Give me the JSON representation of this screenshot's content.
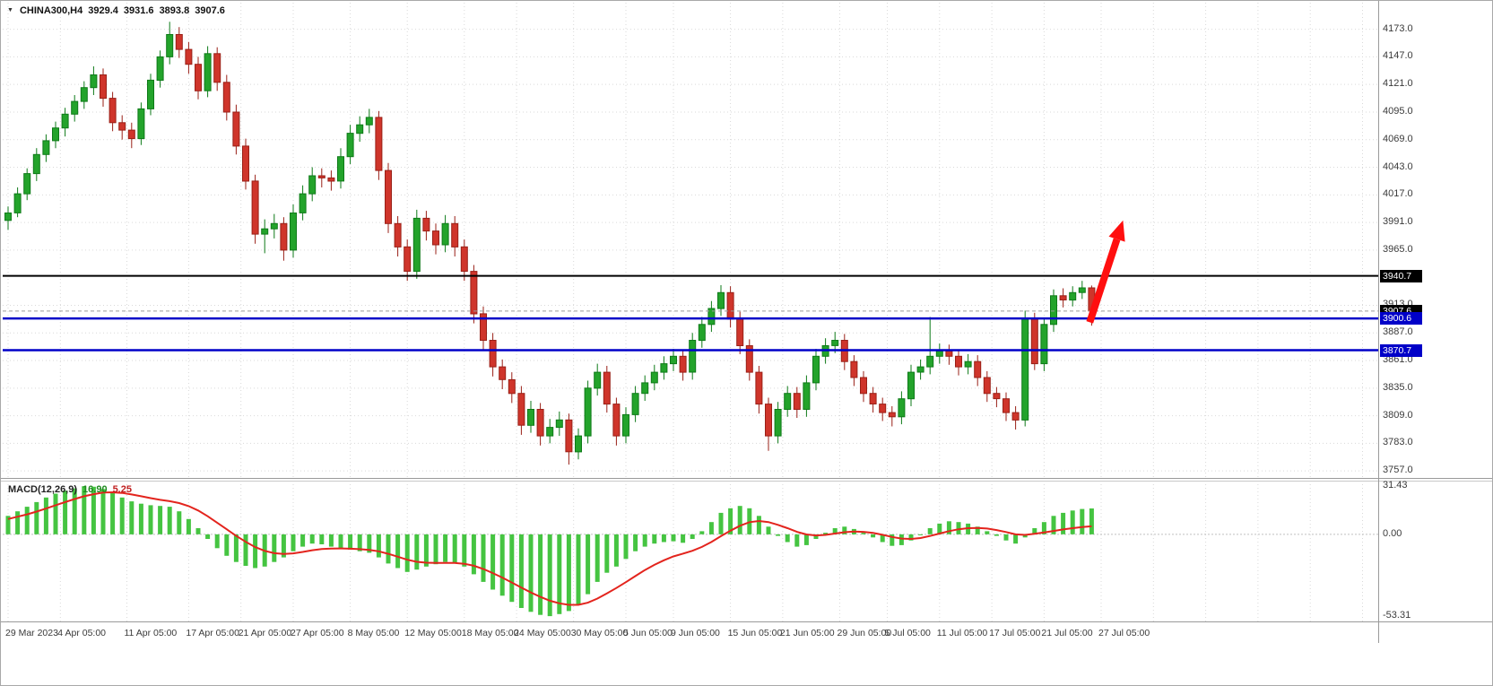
{
  "header": {
    "symbol": "CHINA300,H4",
    "open": "3929.4",
    "high": "3931.6",
    "low": "3893.8",
    "close": "3907.6"
  },
  "macd_panel": {
    "name": "MACD(12,26,9)",
    "main_value": "16.90",
    "signal_value": "5.25",
    "axis_labels": [
      "31.43",
      "0.00",
      "-53.31"
    ]
  },
  "price_axis": {
    "tick_values": [
      4173,
      4147,
      4121,
      4095,
      4069,
      4043,
      4017,
      3991,
      3965,
      3913,
      3887,
      3861,
      3835,
      3809,
      3783,
      3757
    ],
    "badges": [
      {
        "value": 3940.7,
        "label": "3940.7",
        "bg": "#000000"
      },
      {
        "value": 3907.6,
        "label": "3907.6",
        "bg": "#000000"
      },
      {
        "value": 3900.6,
        "label": "3900.6",
        "bg": "#0000c8"
      },
      {
        "value": 3870.7,
        "label": "3870.7",
        "bg": "#0000c8"
      }
    ]
  },
  "time_axis": {
    "labels": [
      {
        "text": "29 Mar 2023",
        "i": 0
      },
      {
        "text": "4 Apr 05:00",
        "i": 5.5
      },
      {
        "text": "11 Apr 05:00",
        "i": 12.5
      },
      {
        "text": "17 Apr 05:00",
        "i": 19
      },
      {
        "text": "21 Apr 05:00",
        "i": 24.5
      },
      {
        "text": "27 Apr 05:00",
        "i": 30
      },
      {
        "text": "8 May 05:00",
        "i": 36
      },
      {
        "text": "12 May 05:00",
        "i": 42
      },
      {
        "text": "18 May 05:00",
        "i": 48
      },
      {
        "text": "24 May 05:00",
        "i": 53.5
      },
      {
        "text": "30 May 05:00",
        "i": 59.5
      },
      {
        "text": "5 Jun 05:00",
        "i": 65
      },
      {
        "text": "9 Jun 05:00",
        "i": 70
      },
      {
        "text": "15 Jun 05:00",
        "i": 76
      },
      {
        "text": "21 Jun 05:00",
        "i": 81.5
      },
      {
        "text": "29 Jun 05:00",
        "i": 87.5
      },
      {
        "text": "5 Jul 05:00",
        "i": 92.5
      },
      {
        "text": "11 Jul 05:00",
        "i": 98
      },
      {
        "text": "17 Jul 05:00",
        "i": 103.5
      },
      {
        "text": "21 Jul 05:00",
        "i": 109
      },
      {
        "text": "27 Jul 05:00",
        "i": 115
      }
    ],
    "extra_grid_i": [
      120.5,
      126,
      131.5,
      137,
      142.5
    ]
  },
  "chart_data": [
    {
      "type": "candlestick",
      "title": "CHINA300,H4",
      "timeframe": "H4",
      "ylim": [
        3750.4,
        4198
      ],
      "current_bar": {
        "open": 3929.4,
        "high": 3931.6,
        "low": 3893.8,
        "close": 3907.6
      },
      "hlines": [
        {
          "y": 3940.7,
          "color": "#000000",
          "style": "solid",
          "width": 2,
          "name": "resistance-line-3940"
        },
        {
          "y": 3907.6,
          "color": "#9b9b9b",
          "style": "dashed",
          "width": 1,
          "name": "current-price-line"
        },
        {
          "y": 3900.6,
          "color": "#0000c8",
          "style": "solid",
          "width": 2.5,
          "name": "support-line-3900"
        },
        {
          "y": 3870.7,
          "color": "#0000c8",
          "style": "solid",
          "width": 2.5,
          "name": "support-line-3870"
        }
      ],
      "colors": {
        "up": "#23a32b",
        "up_stroke": "#0e7a18",
        "down": "#cf352b",
        "down_stroke": "#992017",
        "grid": "#d9d9d9"
      },
      "candles": [
        [
          3993,
          4006,
          3984,
          4000
        ],
        [
          4000,
          4024,
          3996,
          4018
        ],
        [
          4018,
          4042,
          4012,
          4037
        ],
        [
          4037,
          4061,
          4030,
          4055
        ],
        [
          4055,
          4074,
          4048,
          4068
        ],
        [
          4068,
          4086,
          4061,
          4080
        ],
        [
          4080,
          4099,
          4072,
          4093
        ],
        [
          4093,
          4111,
          4086,
          4105
        ],
        [
          4105,
          4124,
          4098,
          4118
        ],
        [
          4118,
          4138,
          4111,
          4130
        ],
        [
          4130,
          4136,
          4100,
          4108
        ],
        [
          4108,
          4114,
          4077,
          4085
        ],
        [
          4085,
          4092,
          4069,
          4078
        ],
        [
          4078,
          4085,
          4061,
          4070
        ],
        [
          4070,
          4104,
          4064,
          4098
        ],
        [
          4098,
          4131,
          4092,
          4125
        ],
        [
          4125,
          4153,
          4118,
          4147
        ],
        [
          4147,
          4180,
          4140,
          4168
        ],
        [
          4168,
          4175,
          4146,
          4154
        ],
        [
          4154,
          4161,
          4131,
          4140
        ],
        [
          4140,
          4147,
          4107,
          4115
        ],
        [
          4115,
          4157,
          4109,
          4150
        ],
        [
          4150,
          4156,
          4115,
          4123
        ],
        [
          4123,
          4130,
          4087,
          4095
        ],
        [
          4095,
          4102,
          4055,
          4063
        ],
        [
          4063,
          4070,
          4022,
          4030
        ],
        [
          4030,
          4036,
          3971,
          3980
        ],
        [
          3980,
          3994,
          3962,
          3985
        ],
        [
          3985,
          3999,
          3976,
          3990
        ],
        [
          3990,
          3996,
          3955,
          3965
        ],
        [
          3965,
          4008,
          3958,
          4000
        ],
        [
          4000,
          4026,
          3993,
          4018
        ],
        [
          4018,
          4043,
          4011,
          4035
        ],
        [
          4035,
          4042,
          4024,
          4033
        ],
        [
          4033,
          4040,
          4021,
          4030
        ],
        [
          4030,
          4061,
          4023,
          4053
        ],
        [
          4053,
          4083,
          4046,
          4075
        ],
        [
          4075,
          4091,
          4067,
          4083
        ],
        [
          4083,
          4098,
          4075,
          4090
        ],
        [
          4090,
          4096,
          4031,
          4040
        ],
        [
          4040,
          4047,
          3981,
          3990
        ],
        [
          3990,
          3997,
          3959,
          3968
        ],
        [
          3968,
          3975,
          3936,
          3945
        ],
        [
          3945,
          4003,
          3938,
          3995
        ],
        [
          3995,
          4002,
          3974,
          3983
        ],
        [
          3983,
          3990,
          3961,
          3970
        ],
        [
          3970,
          3998,
          3963,
          3990
        ],
        [
          3990,
          3997,
          3959,
          3968
        ],
        [
          3968,
          3975,
          3936,
          3945
        ],
        [
          3945,
          3951,
          3896,
          3905
        ],
        [
          3905,
          3912,
          3871,
          3880
        ],
        [
          3880,
          3887,
          3846,
          3855
        ],
        [
          3855,
          3862,
          3834,
          3843
        ],
        [
          3843,
          3850,
          3821,
          3830
        ],
        [
          3830,
          3837,
          3791,
          3800
        ],
        [
          3800,
          3823,
          3793,
          3815
        ],
        [
          3815,
          3821,
          3781,
          3790
        ],
        [
          3790,
          3806,
          3783,
          3798
        ],
        [
          3798,
          3813,
          3790,
          3805
        ],
        [
          3805,
          3811,
          3763,
          3775
        ],
        [
          3775,
          3797,
          3768,
          3790
        ],
        [
          3790,
          3842,
          3783,
          3835
        ],
        [
          3835,
          3858,
          3828,
          3850
        ],
        [
          3850,
          3856,
          3812,
          3820
        ],
        [
          3820,
          3826,
          3781,
          3790
        ],
        [
          3790,
          3817,
          3783,
          3810
        ],
        [
          3810,
          3837,
          3803,
          3830
        ],
        [
          3830,
          3847,
          3823,
          3840
        ],
        [
          3840,
          3857,
          3833,
          3850
        ],
        [
          3850,
          3865,
          3843,
          3858
        ],
        [
          3858,
          3872,
          3851,
          3865
        ],
        [
          3865,
          3871,
          3842,
          3850
        ],
        [
          3850,
          3887,
          3843,
          3880
        ],
        [
          3880,
          3902,
          3873,
          3895
        ],
        [
          3895,
          3917,
          3888,
          3910
        ],
        [
          3910,
          3932,
          3903,
          3925
        ],
        [
          3925,
          3931,
          3892,
          3900
        ],
        [
          3900,
          3907,
          3867,
          3875
        ],
        [
          3875,
          3881,
          3842,
          3850
        ],
        [
          3850,
          3856,
          3811,
          3820
        ],
        [
          3820,
          3826,
          3776,
          3790
        ],
        [
          3790,
          3822,
          3783,
          3815
        ],
        [
          3815,
          3837,
          3808,
          3830
        ],
        [
          3830,
          3836,
          3807,
          3815
        ],
        [
          3815,
          3847,
          3808,
          3840
        ],
        [
          3840,
          3872,
          3833,
          3865
        ],
        [
          3865,
          3882,
          3858,
          3875
        ],
        [
          3875,
          3888,
          3868,
          3880
        ],
        [
          3880,
          3886,
          3852,
          3860
        ],
        [
          3860,
          3866,
          3837,
          3845
        ],
        [
          3845,
          3851,
          3822,
          3830
        ],
        [
          3830,
          3836,
          3812,
          3820
        ],
        [
          3820,
          3826,
          3804,
          3812
        ],
        [
          3812,
          3818,
          3799,
          3808
        ],
        [
          3808,
          3832,
          3801,
          3825
        ],
        [
          3825,
          3857,
          3818,
          3850
        ],
        [
          3850,
          3862,
          3843,
          3855
        ],
        [
          3855,
          3902,
          3848,
          3865
        ],
        [
          3865,
          3877,
          3858,
          3870
        ],
        [
          3870,
          3876,
          3857,
          3865
        ],
        [
          3865,
          3871,
          3847,
          3855
        ],
        [
          3855,
          3867,
          3848,
          3860
        ],
        [
          3860,
          3866,
          3837,
          3845
        ],
        [
          3845,
          3851,
          3822,
          3830
        ],
        [
          3830,
          3836,
          3817,
          3825
        ],
        [
          3825,
          3831,
          3804,
          3812
        ],
        [
          3812,
          3818,
          3796,
          3805
        ],
        [
          3805,
          3908,
          3799,
          3900
        ],
        [
          3900,
          3906,
          3852,
          3858
        ],
        [
          3858,
          3901,
          3851,
          3895
        ],
        [
          3895,
          3928,
          3888,
          3922
        ],
        [
          3922,
          3929,
          3911,
          3918
        ],
        [
          3918,
          3931,
          3912,
          3925
        ],
        [
          3925,
          3936,
          3919,
          3929.4
        ],
        [
          3929.4,
          3931.6,
          3893.8,
          3907.6
        ]
      ]
    },
    {
      "type": "macd",
      "params": "12,26,9",
      "ylim": [
        -56.8,
        35.0
      ],
      "axis_ticks": [
        31.43,
        0,
        -53.31
      ],
      "colors": {
        "histogram": "#45c441",
        "signal": "#e3241d",
        "zero_line": "#c0c0c0"
      },
      "histogram": [
        12,
        15,
        18,
        21,
        24,
        26.5,
        28.5,
        30,
        31.4,
        31,
        29.5,
        27,
        24,
        21.5,
        20,
        19,
        18.5,
        18,
        15,
        10,
        4,
        -3,
        -9,
        -14,
        -18,
        -20.5,
        -22,
        -21,
        -18,
        -15,
        -11,
        -8,
        -6,
        -6.5,
        -8,
        -9,
        -10,
        -11,
        -12,
        -15,
        -19,
        -22,
        -24.5,
        -23,
        -21,
        -19.5,
        -18,
        -19,
        -21,
        -26,
        -31,
        -36,
        -40,
        -44,
        -48,
        -50.5,
        -52.5,
        -53.3,
        -52,
        -50,
        -46,
        -39,
        -31,
        -25,
        -21,
        -16,
        -11,
        -8,
        -6,
        -5,
        -4.5,
        -5.5,
        -3,
        2,
        8,
        14,
        17,
        18.5,
        17,
        12,
        5,
        -1,
        -5,
        -8,
        -7,
        -3,
        1,
        4,
        5,
        3.5,
        1,
        -2,
        -5,
        -7.5,
        -7,
        -4,
        0,
        4,
        7,
        8.5,
        8,
        7,
        5,
        2,
        -1,
        -4,
        -6,
        -2,
        4,
        8,
        12,
        14,
        15.5,
        16.5,
        16.9
      ],
      "signal": [
        10,
        11.5,
        13,
        14.8,
        16.8,
        19,
        21,
        23,
        24.8,
        26.2,
        27.2,
        27.4,
        27,
        26,
        24.8,
        23.6,
        22.5,
        21.6,
        20.4,
        18.4,
        15.5,
        11.8,
        7.6,
        3.3,
        -1,
        -4.9,
        -8.3,
        -10.8,
        -12.3,
        -12.8,
        -12.4,
        -11.5,
        -10.4,
        -9.6,
        -9.3,
        -9.2,
        -9.4,
        -9.7,
        -10.2,
        -11.1,
        -12.7,
        -14.6,
        -16.6,
        -17.9,
        -18.5,
        -18.7,
        -18.6,
        -18.7,
        -19.2,
        -20.5,
        -22.6,
        -25.3,
        -28.2,
        -31.4,
        -34.7,
        -37.9,
        -40.8,
        -43.3,
        -45,
        -46,
        -46,
        -44.6,
        -41.9,
        -38.5,
        -35,
        -31.2,
        -27.2,
        -23.3,
        -19.9,
        -16.9,
        -14.4,
        -12.6,
        -10.7,
        -8.2,
        -5,
        -1.2,
        2.4,
        5.6,
        7.9,
        8.7,
        8,
        6.2,
        4,
        1.6,
        -0.1,
        -0.7,
        -0.4,
        0.5,
        1.4,
        1.8,
        1.6,
        0.9,
        -0.3,
        -1.7,
        -2.8,
        -3,
        -2.4,
        -1.1,
        0.5,
        2.1,
        3.3,
        4,
        4.2,
        3.8,
        2.8,
        1.5,
        0,
        -0.4,
        0.3,
        1.2,
        2.2,
        3.2,
        4,
        4.7,
        5.25
      ]
    }
  ],
  "annotations": [
    {
      "type": "arrow",
      "from": {
        "i": 113.8,
        "price": 3897
      },
      "to": {
        "i": 117.3,
        "price": 3993
      },
      "color": "#ff0f0f",
      "width": 8
    }
  ]
}
